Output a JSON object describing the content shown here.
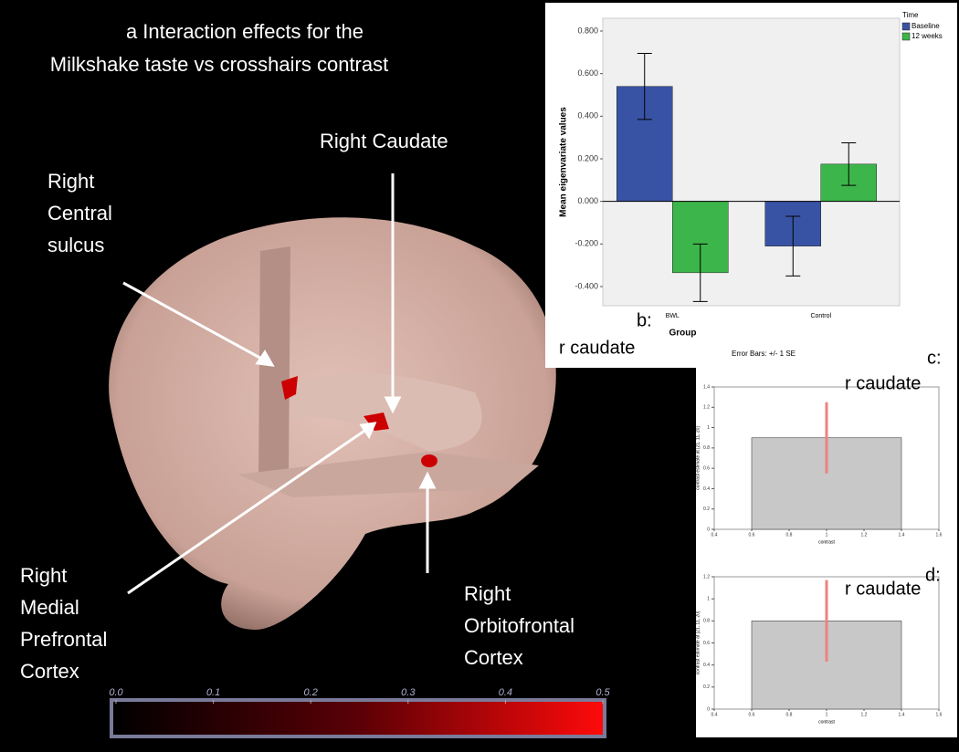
{
  "title_lines": [
    "a Interaction effects for the",
    "Milkshake taste vs crosshairs contrast"
  ],
  "annotations": [
    [
      "Right",
      "Central",
      "sulcus"
    ],
    [
      "Right Caudate"
    ],
    [
      "Right",
      "Medial",
      "Prefrontal",
      "Cortex"
    ],
    [
      "Right",
      "Orbitofrontal",
      "Cortex"
    ]
  ],
  "colorbar": {
    "ticks": [
      {
        "value": 0,
        "label": "0.0"
      },
      0.1,
      0.2,
      0.3,
      0.4,
      0.5
    ]
  },
  "chart_data": [
    {
      "type": "bar",
      "panel": "b:",
      "annotation": "r caudate",
      "xlabel": "Group",
      "ylabel": "Mean eigenvariate values",
      "note": "Error Bars: +/- 1 SE",
      "legend_title": "Time",
      "categories": [
        "BWL",
        "Control"
      ],
      "series": [
        {
          "name": "Baseline",
          "color": "#3953a4",
          "values": [
            0.54,
            -0.21
          ],
          "errors": [
            0.155,
            0.14
          ]
        },
        {
          "name": "12 weeks",
          "color": "#3cb54a",
          "values": [
            -0.335,
            0.175
          ],
          "errors": [
            0.135,
            0.1
          ]
        }
      ],
      "ylim": [
        -0.49,
        0.86
      ],
      "yticks": [
        {
          "value": -0.4,
          "label": "-0.400"
        },
        {
          "value": -0.2,
          "label": "-0.200"
        },
        {
          "value": 0,
          "label": "0.000"
        },
        {
          "value": 0.2,
          "label": "0.200"
        },
        {
          "value": 0.4,
          "label": "0.400"
        },
        {
          "value": 0.6,
          "label": "0.600"
        },
        {
          "value": 0.8,
          "label": "0.800"
        }
      ]
    },
    {
      "type": "bar",
      "panel": "c:",
      "annotation": "r caudate",
      "xlabel": "contrast",
      "ylabel": "contrast estimate at [21, 11, 20]",
      "x": [
        1
      ],
      "bar_width": 0.8,
      "values": [
        0.9
      ],
      "errors": [
        0.35
      ],
      "color": "#c8c8c8",
      "error_color": "#f08080",
      "xlim": [
        0.4,
        1.6
      ],
      "xticks": [
        0.4,
        0.6,
        0.8,
        1,
        1.2,
        1.4,
        1.6
      ],
      "ylim": [
        0,
        1.4
      ],
      "yticks": [
        0,
        0.2,
        0.4,
        0.6,
        0.8,
        1,
        1.2,
        1.4
      ]
    },
    {
      "type": "bar",
      "panel": "d:",
      "annotation": "r caudate",
      "xlabel": "contrast",
      "ylabel": "contrast estimate at [21, 11, 20]",
      "x": [
        1
      ],
      "bar_width": 0.8,
      "values": [
        0.8
      ],
      "errors": [
        0.37
      ],
      "color": "#c8c8c8",
      "error_color": "#f08080",
      "xlim": [
        0.4,
        1.6
      ],
      "xticks": [
        0.4,
        0.6,
        0.8,
        1,
        1.2,
        1.4,
        1.6
      ],
      "ylim": [
        0,
        1.2
      ],
      "yticks": [
        0,
        0.2,
        0.4,
        0.6,
        0.8,
        1,
        1.2
      ]
    }
  ]
}
